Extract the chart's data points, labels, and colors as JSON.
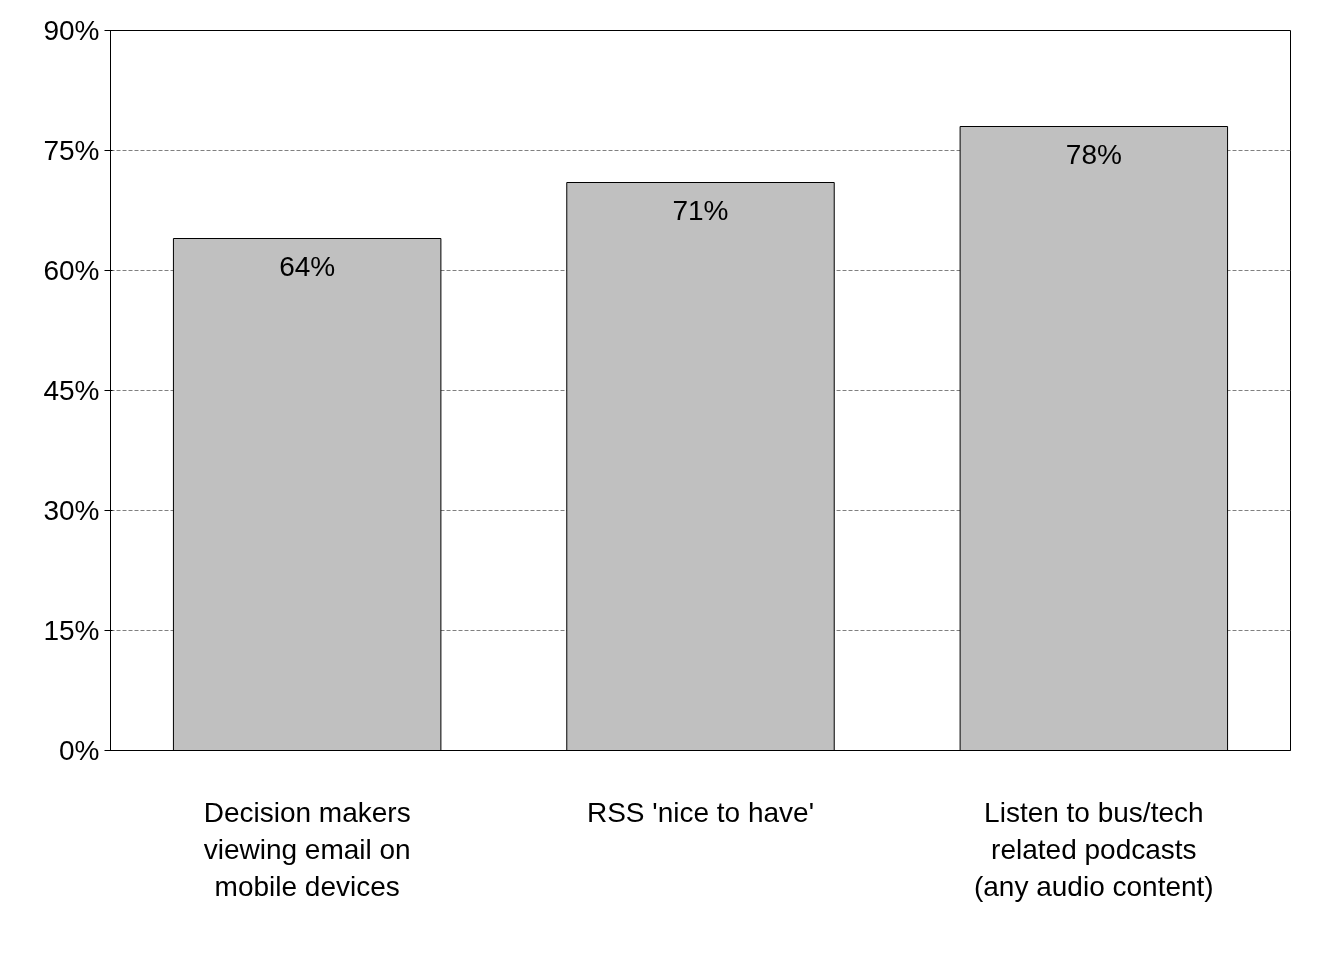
{
  "chart_data": {
    "type": "bar",
    "categories": [
      "Decision makers viewing email on mobile devices",
      "RSS 'nice to have'",
      "Listen to bus/tech related podcasts (any audio content)"
    ],
    "values": [
      64,
      71,
      78
    ],
    "value_labels": [
      "64%",
      "71%",
      "78%"
    ],
    "color": "#c0c0c0",
    "ylim": [
      0,
      90
    ],
    "yticks": [
      {
        "value": 0,
        "label": "0%"
      },
      {
        "value": 15,
        "label": "15%"
      },
      {
        "value": 30,
        "label": "30%"
      },
      {
        "value": 45,
        "label": "45%"
      },
      {
        "value": 60,
        "label": "60%"
      },
      {
        "value": 75,
        "label": "75%"
      },
      {
        "value": 90,
        "label": "90%"
      }
    ],
    "grid": "y"
  }
}
